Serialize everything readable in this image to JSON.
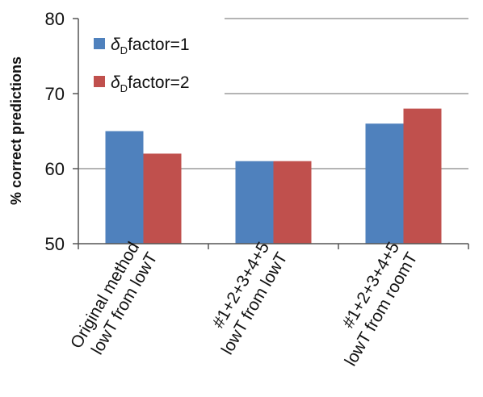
{
  "chart_data": {
    "type": "bar",
    "ylabel": "% correct predictions",
    "ylim": [
      50,
      80
    ],
    "yticks": [
      "50",
      "60",
      "70",
      "80"
    ],
    "grid": true,
    "legend_position": "top-left",
    "categories": [
      {
        "line1": "Original method",
        "line2": "lowT from lowT"
      },
      {
        "line1": "#1+2+3+4+5",
        "line2": "lowT from lowT"
      },
      {
        "line1": "#1+2+3+4+5",
        "line2": "lowT from roomT"
      }
    ],
    "series": [
      {
        "symbol": "δ",
        "subscript": "D",
        "suffix": "factor=1",
        "color": "#4f81bd",
        "values": [
          65,
          61,
          66
        ]
      },
      {
        "symbol": "δ",
        "subscript": "D",
        "suffix": "factor=2",
        "color": "#c0504d",
        "values": [
          62,
          61,
          68
        ]
      }
    ]
  }
}
